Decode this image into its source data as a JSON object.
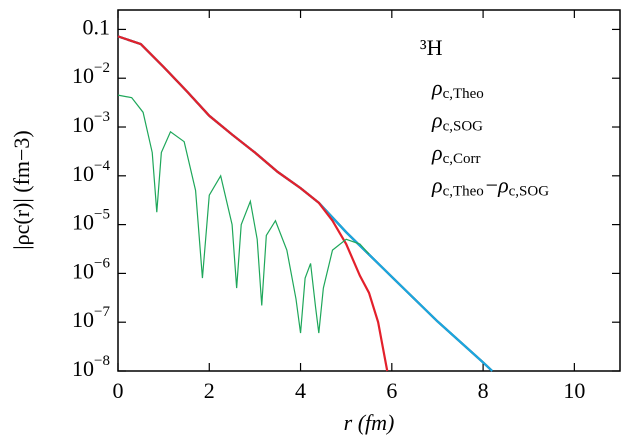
{
  "chart_data": {
    "type": "line",
    "log_y": true,
    "x_label": "r (fm)",
    "y_label": "|ρc(r)| (fm−3)",
    "annotation": "³H",
    "xlim": [
      0,
      11
    ],
    "xticks": [
      0,
      2,
      4,
      6,
      8,
      10
    ],
    "ylim": [
      1e-08,
      0.25
    ],
    "yticks": [
      0.1,
      {
        "value": 0.01,
        "label": "10−2"
      },
      {
        "value": 0.001,
        "label": "10−3"
      },
      {
        "value": 0.0001,
        "label": "10−4"
      },
      {
        "value": 1e-05,
        "label": "10−5"
      },
      {
        "value": 1e-06,
        "label": "10−6"
      },
      {
        "value": 1e-07,
        "label": "10−7"
      },
      {
        "value": 1e-08,
        "label": "10−8"
      }
    ],
    "grid": false,
    "series": [
      {
        "name": "ρc,Theo",
        "color": "#000000",
        "x": [
          0,
          0.5,
          1,
          1.5,
          2,
          2.5,
          3,
          3.5,
          4,
          4.4,
          5,
          6,
          7,
          8,
          8.2
        ],
        "values": [
          0.072,
          0.05,
          0.017,
          0.0055,
          0.0017,
          0.0007,
          0.0003,
          0.00012,
          5.6e-05,
          2.8e-05,
          7e-06,
          8.5e-07,
          1.04e-07,
          1.5e-08,
          1e-08
        ]
      },
      {
        "name": "ρc,SOG",
        "color": "#e3202b",
        "x": [
          0,
          0.5,
          1,
          1.5,
          2,
          2.5,
          3,
          3.5,
          4,
          4.4,
          4.7,
          5,
          5.3,
          5.5,
          5.7,
          5.9
        ],
        "values": [
          0.072,
          0.05,
          0.017,
          0.0055,
          0.0017,
          0.0007,
          0.0003,
          0.00012,
          5.6e-05,
          2.8e-05,
          1.2e-05,
          4e-06,
          9e-07,
          4e-07,
          1e-07,
          1e-08
        ]
      },
      {
        "name": "ρc,Corr",
        "color": "#1aa7e1",
        "x": [
          0,
          0.5,
          1,
          1.5,
          2,
          2.5,
          3,
          3.5,
          4,
          4.4,
          5,
          6,
          7,
          8,
          8.2
        ],
        "values": [
          0.072,
          0.05,
          0.017,
          0.0055,
          0.0017,
          0.0007,
          0.0003,
          0.00012,
          5.6e-05,
          2.8e-05,
          7e-06,
          8.5e-07,
          1.04e-07,
          1.5e-08,
          1e-08
        ]
      },
      {
        "name": "ρc,Theo−ρc,SOG",
        "color": "#1ea75a",
        "x": [
          0,
          0.3,
          0.55,
          0.75,
          0.85,
          0.95,
          1.15,
          1.45,
          1.7,
          1.85,
          2.0,
          2.25,
          2.5,
          2.6,
          2.7,
          2.9,
          3.05,
          3.15,
          3.25,
          3.45,
          3.7,
          3.9,
          4.0,
          4.1,
          4.22,
          4.33,
          4.4,
          4.5,
          4.7,
          5.0,
          5.3,
          5.5
        ],
        "values": [
          0.0045,
          0.004,
          0.002,
          0.0003,
          1.8e-05,
          0.0003,
          0.0008,
          0.0005,
          5e-05,
          8e-07,
          4e-05,
          0.0001,
          1e-05,
          5e-07,
          1e-05,
          3e-05,
          5e-06,
          2.2e-07,
          6e-06,
          1.2e-05,
          3e-06,
          3e-07,
          6e-08,
          8e-07,
          1.6e-06,
          2e-07,
          6e-08,
          5e-07,
          3e-06,
          5e-06,
          4e-06,
          2.5e-06
        ]
      }
    ]
  }
}
